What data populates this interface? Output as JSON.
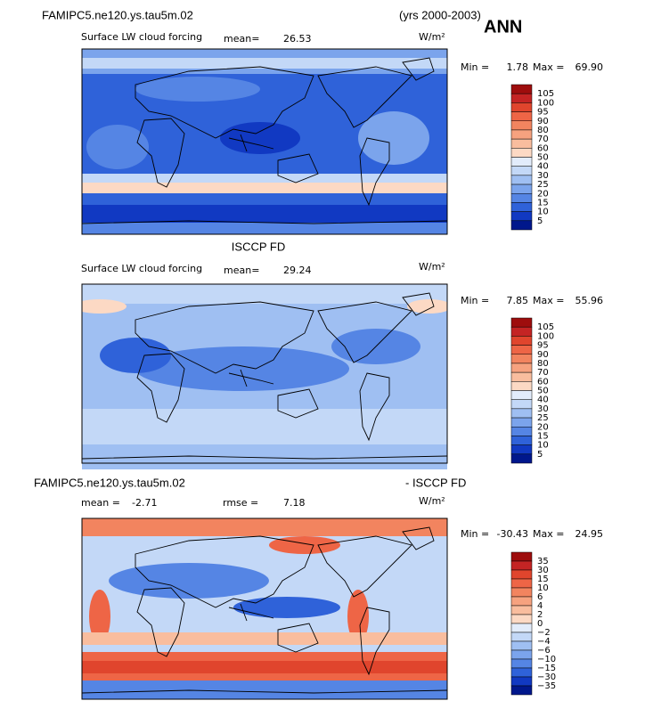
{
  "header": {
    "case": "FAMIPC5.ne120.ys.tau5m.02",
    "years": "(yrs 2000-2003)",
    "season": "ANN"
  },
  "colorbar_colors": [
    "#9e0d0d",
    "#c42424",
    "#e0452d",
    "#ee6546",
    "#f2845f",
    "#f6a27f",
    "#f9bd9e",
    "#fcd9c4",
    "#e2ecfb",
    "#c3d8f7",
    "#9fbff2",
    "#7ba4ec",
    "#5585e4",
    "#2f62d9",
    "#1139c2",
    "#00178c"
  ],
  "panels": [
    {
      "title": "Surface LW cloud forcing",
      "mean_label": "mean=",
      "mean": "26.53",
      "units": "W/m²",
      "min_label": "Min =",
      "min": "1.78",
      "max_label": "Max =",
      "max": "69.90",
      "colorbar_labels": [
        "105",
        "100",
        "95",
        "90",
        "80",
        "70",
        "60",
        "50",
        "40",
        "30",
        "25",
        "20",
        "15",
        "10",
        "5"
      ]
    },
    {
      "heading": "ISCCP FD",
      "title": "Surface LW cloud forcing",
      "mean_label": "mean=",
      "mean": "29.24",
      "units": "W/m²",
      "min_label": "Min =",
      "min": "7.85",
      "max_label": "Max =",
      "max": "55.96",
      "colorbar_labels": [
        "105",
        "100",
        "95",
        "90",
        "80",
        "70",
        "60",
        "50",
        "40",
        "30",
        "25",
        "20",
        "15",
        "10",
        "5"
      ]
    },
    {
      "heading": "FAMIPC5.ne120.ys.tau5m.02",
      "heading_right": "- ISCCP FD",
      "mean_label": "mean =",
      "mean": "-2.71",
      "rmse_label": "rmse =",
      "rmse": "7.18",
      "units": "W/m²",
      "min_label": "Min =",
      "min": "-30.43",
      "max_label": "Max =",
      "max": "24.95",
      "colorbar_labels": [
        "35",
        "30",
        "15",
        "10",
        "6",
        "4",
        "2",
        "0",
        "−2",
        "−4",
        "−6",
        "−10",
        "−15",
        "−30",
        "−35"
      ]
    }
  ]
}
